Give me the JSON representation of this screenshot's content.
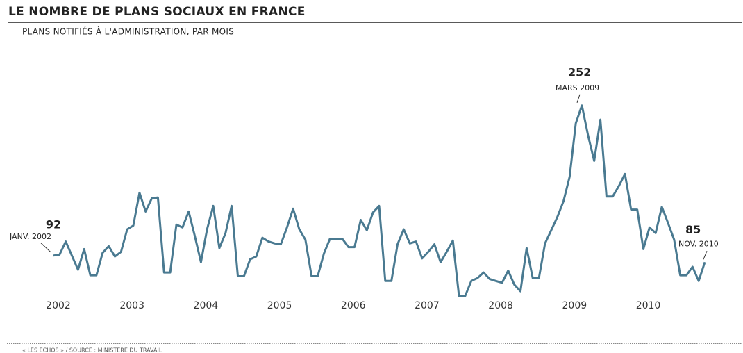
{
  "chart_data": {
    "type": "line",
    "title": "LE NOMBRE DE PLANS SOCIAUX EN FRANCE",
    "subtitle": "PLANS NOTIFIÉS À L'ADMINISTRATION, PAR MOIS",
    "source": "« LES ÉCHOS » / SOURCE : MINISTÈRE DU TRAVAIL",
    "x": [
      "2002-01",
      "2002-02",
      "2002-03",
      "2002-04",
      "2002-05",
      "2002-06",
      "2002-07",
      "2002-08",
      "2002-09",
      "2002-10",
      "2002-11",
      "2002-12",
      "2003-01",
      "2003-02",
      "2003-03",
      "2003-04",
      "2003-05",
      "2003-06",
      "2003-07",
      "2003-08",
      "2003-09",
      "2003-10",
      "2003-11",
      "2003-12",
      "2004-01",
      "2004-02",
      "2004-03",
      "2004-04",
      "2004-05",
      "2004-06",
      "2004-07",
      "2004-08",
      "2004-09",
      "2004-10",
      "2004-11",
      "2004-12",
      "2005-01",
      "2005-02",
      "2005-03",
      "2005-04",
      "2005-05",
      "2005-06",
      "2005-07",
      "2005-08",
      "2005-09",
      "2005-10",
      "2005-11",
      "2005-12",
      "2006-01",
      "2006-02",
      "2006-03",
      "2006-04",
      "2006-05",
      "2006-06",
      "2006-07",
      "2006-08",
      "2006-09",
      "2006-10",
      "2006-11",
      "2006-12",
      "2007-01",
      "2007-02",
      "2007-03",
      "2007-04",
      "2007-05",
      "2007-06",
      "2007-07",
      "2007-08",
      "2007-09",
      "2007-10",
      "2007-11",
      "2007-12",
      "2008-01",
      "2008-02",
      "2008-03",
      "2008-04",
      "2008-05",
      "2008-06",
      "2008-07",
      "2008-08",
      "2008-09",
      "2008-10",
      "2008-11",
      "2008-12",
      "2009-01",
      "2009-02",
      "2009-03",
      "2009-04",
      "2009-05",
      "2009-06",
      "2009-07",
      "2009-08",
      "2009-09",
      "2009-10",
      "2009-11",
      "2009-12",
      "2010-01",
      "2010-02",
      "2010-03",
      "2010-04",
      "2010-05",
      "2010-06",
      "2010-07",
      "2010-08",
      "2010-09",
      "2010-10",
      "2010-11"
    ],
    "series": [
      {
        "color": "#4a7a91",
        "values": [
          92,
          93,
          107,
          92,
          77,
          99,
          71,
          71,
          95,
          102,
          91,
          96,
          120,
          124,
          159,
          139,
          153,
          154,
          74,
          74,
          125,
          122,
          139,
          113,
          85,
          120,
          145,
          100,
          116,
          145,
          70,
          70,
          88,
          91,
          111,
          107,
          105,
          104,
          122,
          142,
          120,
          109,
          70,
          70,
          94,
          110,
          110,
          110,
          101,
          101,
          130,
          119,
          138,
          145,
          65,
          65,
          104,
          120,
          105,
          107,
          89,
          96,
          104,
          85,
          96,
          108,
          49,
          49,
          65,
          68,
          74,
          67,
          65,
          63,
          76,
          61,
          54,
          100,
          68,
          68,
          105,
          119,
          133,
          150,
          176,
          233,
          252,
          220,
          193,
          237,
          155,
          155,
          166,
          179,
          141,
          141,
          99,
          122,
          116,
          144,
          127,
          109,
          71,
          71,
          80,
          65,
          85
        ]
      }
    ],
    "xticks": [
      2002,
      2003,
      2004,
      2005,
      2006,
      2007,
      2008,
      2009,
      2010
    ],
    "ylim": [
      40,
      260
    ],
    "annotations": [
      {
        "x": "2002-01",
        "value": 92,
        "label": "JANV. 2002"
      },
      {
        "x": "2009-03",
        "value": 252,
        "label": "MARS 2009"
      },
      {
        "x": "2010-11",
        "value": 85,
        "label": "NOV. 2010"
      }
    ]
  }
}
